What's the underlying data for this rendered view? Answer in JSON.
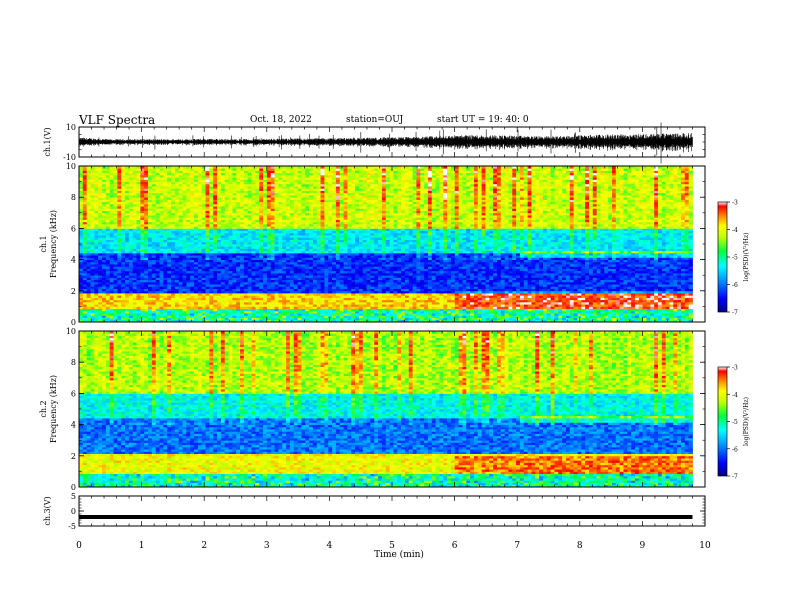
{
  "header": {
    "title": "VLF Spectra",
    "date": "Oct. 18, 2022",
    "station": "station=OUJ",
    "start": "start  UT =   19: 40: 0"
  },
  "colors": {
    "waveform": "#000000",
    "colormap": [
      "#00008b",
      "#0000ff",
      "#0090ff",
      "#00e0e0",
      "#00ff60",
      "#a0ff00",
      "#ffff00",
      "#ffa000",
      "#ff2000",
      "#e00000",
      "#ffffff"
    ]
  },
  "chart_data": [
    {
      "type": "line",
      "name": "ch1-waveform",
      "ylabel": "ch.1(V)",
      "ylim": [
        -10,
        10
      ],
      "yticks": [
        "10",
        "-10"
      ],
      "xlim": [
        0,
        10
      ],
      "x": [
        0.0,
        0.5,
        1.0,
        1.5,
        2.0,
        2.5,
        3.0,
        3.5,
        4.0,
        4.5,
        5.0,
        5.5,
        6.0,
        6.5,
        7.0,
        7.5,
        8.0,
        8.5,
        9.0,
        9.5,
        9.8
      ],
      "amplitude": [
        2.5,
        1.5,
        1.6,
        1.5,
        1.8,
        1.6,
        1.8,
        2.0,
        2.2,
        2.4,
        2.6,
        3.0,
        3.8,
        4.0,
        3.5,
        3.2,
        3.8,
        4.2,
        4.5,
        4.8,
        5.0
      ]
    },
    {
      "type": "heatmap",
      "name": "ch1-spectrogram",
      "ylabel": "ch.1\nFrequency (kHz)",
      "ylim": [
        0,
        10
      ],
      "yticks": [
        "0",
        "2",
        "4",
        "6",
        "8",
        "10"
      ],
      "xlim": [
        0,
        9.8
      ],
      "colorbar": {
        "range": [
          -7,
          -3
        ],
        "ticks": [
          "-3",
          "-4",
          "-5",
          "-6",
          "-7"
        ],
        "label": "log(PSD)(V²/Hz)"
      },
      "bands": [
        {
          "freq_khz": [
            0.0,
            0.8
          ],
          "level": -5.0
        },
        {
          "freq_khz": [
            0.8,
            1.8
          ],
          "level": -3.8
        },
        {
          "freq_khz": [
            1.8,
            4.5
          ],
          "level": -6.3
        },
        {
          "freq_khz": [
            4.5,
            6.0
          ],
          "level": -5.4
        },
        {
          "freq_khz": [
            6.0,
            10.0
          ],
          "level": -4.2
        }
      ]
    },
    {
      "type": "heatmap",
      "name": "ch2-spectrogram",
      "ylabel": "ch.2\nFrequency (kHz)",
      "ylim": [
        0,
        10
      ],
      "yticks": [
        "0",
        "2",
        "4",
        "6",
        "8",
        "10"
      ],
      "xlim": [
        0,
        9.8
      ],
      "colorbar": {
        "range": [
          -7,
          -3
        ],
        "ticks": [
          "-3",
          "-4",
          "-5",
          "-6",
          "-7"
        ],
        "label": "log(PSD)(V²/Hz)"
      },
      "bands": [
        {
          "freq_khz": [
            0.0,
            0.8
          ],
          "level": -5.1
        },
        {
          "freq_khz": [
            0.8,
            2.2
          ],
          "level": -4.0
        },
        {
          "freq_khz": [
            2.2,
            4.5
          ],
          "level": -6.0
        },
        {
          "freq_khz": [
            4.5,
            6.0
          ],
          "level": -5.3
        },
        {
          "freq_khz": [
            6.0,
            10.0
          ],
          "level": -4.3
        }
      ]
    },
    {
      "type": "line",
      "name": "ch3-waveform",
      "ylabel": "ch.3(V)",
      "ylim": [
        -5,
        5
      ],
      "yticks": [
        "5",
        "0",
        "-5"
      ],
      "xlim": [
        0,
        9.8
      ],
      "x": [
        0,
        9.8
      ],
      "y": [
        -2,
        -2
      ]
    }
  ],
  "xaxis": {
    "label": "Time  (min)",
    "ticks": [
      "0",
      "1",
      "2",
      "3",
      "4",
      "5",
      "6",
      "7",
      "8",
      "9",
      "10"
    ]
  }
}
